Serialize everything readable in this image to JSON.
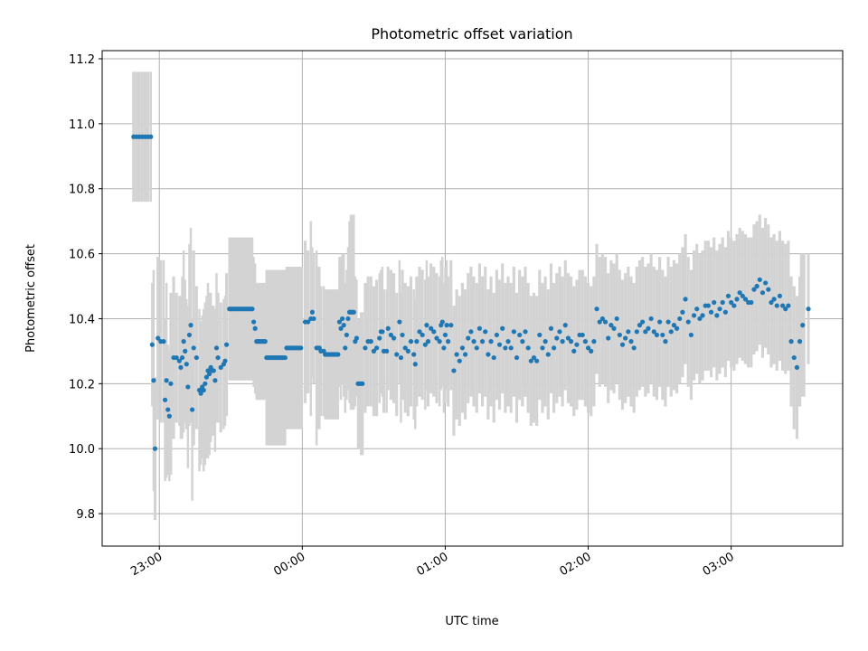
{
  "chart_data": {
    "type": "scatter",
    "title": "Photometric offset variation",
    "xlabel": "UTC time",
    "ylabel": "Photometric offset",
    "x_unit": "hours",
    "xlim": [
      -1.4,
      3.78
    ],
    "ylim": [
      9.7,
      11.225
    ],
    "x_ticks": [
      {
        "value": -1.0,
        "label": "23:00"
      },
      {
        "value": 0.0,
        "label": "00:00"
      },
      {
        "value": 1.0,
        "label": "01:00"
      },
      {
        "value": 2.0,
        "label": "02:00"
      },
      {
        "value": 3.0,
        "label": "03:00"
      }
    ],
    "y_ticks": [
      {
        "value": 9.8,
        "label": "9.8"
      },
      {
        "value": 10.0,
        "label": "10.0"
      },
      {
        "value": 10.2,
        "label": "10.2"
      },
      {
        "value": 10.4,
        "label": "10.4"
      },
      {
        "value": 10.6,
        "label": "10.6"
      },
      {
        "value": 10.8,
        "label": "10.8"
      },
      {
        "value": 11.0,
        "label": "11.0"
      },
      {
        "value": 11.2,
        "label": "11.2"
      }
    ],
    "grid": true,
    "marker_color": "#1f77b4",
    "errorbar_color": "#d3d3d3",
    "points": [
      [
        -1.18,
        10.96,
        0.2
      ],
      [
        -1.16,
        10.96,
        0.2
      ],
      [
        -1.14,
        10.96,
        0.2
      ],
      [
        -1.12,
        10.96,
        0.2
      ],
      [
        -1.1,
        10.96,
        0.2
      ],
      [
        -1.08,
        10.96,
        0.2
      ],
      [
        -1.06,
        10.96,
        0.2
      ],
      [
        -1.05,
        10.32,
        0.19
      ],
      [
        -1.04,
        10.21,
        0.34
      ],
      [
        -1.03,
        10.0,
        0.22
      ],
      [
        -1.01,
        10.34,
        0.25
      ],
      [
        -0.99,
        10.33,
        0.25
      ],
      [
        -0.97,
        10.33,
        0.25
      ],
      [
        -0.96,
        10.15,
        0.25
      ],
      [
        -0.95,
        10.21,
        0.3
      ],
      [
        -0.94,
        10.12,
        0.2
      ],
      [
        -0.93,
        10.1,
        0.2
      ],
      [
        -0.92,
        10.2,
        0.28
      ],
      [
        -0.9,
        10.28,
        0.25
      ],
      [
        -0.88,
        10.28,
        0.2
      ],
      [
        -0.86,
        10.27,
        0.2
      ],
      [
        -0.85,
        10.25,
        0.22
      ],
      [
        -0.84,
        10.28,
        0.25
      ],
      [
        -0.83,
        10.33,
        0.28
      ],
      [
        -0.82,
        10.3,
        0.22
      ],
      [
        -0.81,
        10.26,
        0.2
      ],
      [
        -0.8,
        10.19,
        0.25
      ],
      [
        -0.79,
        10.35,
        0.28
      ],
      [
        -0.78,
        10.38,
        0.3
      ],
      [
        -0.77,
        10.12,
        0.28
      ],
      [
        -0.76,
        10.31,
        0.3
      ],
      [
        -0.74,
        10.28,
        0.22
      ],
      [
        -0.72,
        10.18,
        0.25
      ],
      [
        -0.71,
        10.17,
        0.22
      ],
      [
        -0.7,
        10.19,
        0.22
      ],
      [
        -0.69,
        10.18,
        0.25
      ],
      [
        -0.68,
        10.2,
        0.25
      ],
      [
        -0.67,
        10.22,
        0.25
      ],
      [
        -0.66,
        10.24,
        0.27
      ],
      [
        -0.65,
        10.23,
        0.25
      ],
      [
        -0.64,
        10.25,
        0.23
      ],
      [
        -0.63,
        10.24,
        0.2
      ],
      [
        -0.62,
        10.24,
        0.2
      ],
      [
        -0.61,
        10.21,
        0.22
      ],
      [
        -0.6,
        10.31,
        0.23
      ],
      [
        -0.59,
        10.28,
        0.2
      ],
      [
        -0.57,
        10.25,
        0.2
      ],
      [
        -0.55,
        10.26,
        0.2
      ],
      [
        -0.54,
        10.27,
        0.2
      ],
      [
        -0.53,
        10.32,
        0.22
      ],
      [
        -0.51,
        10.43,
        0.22
      ],
      [
        -0.5,
        10.43,
        0.22
      ],
      [
        -0.49,
        10.43,
        0.22
      ],
      [
        -0.48,
        10.43,
        0.22
      ],
      [
        -0.47,
        10.43,
        0.22
      ],
      [
        -0.46,
        10.43,
        0.22
      ],
      [
        -0.45,
        10.43,
        0.22
      ],
      [
        -0.44,
        10.43,
        0.22
      ],
      [
        -0.43,
        10.43,
        0.22
      ],
      [
        -0.42,
        10.43,
        0.22
      ],
      [
        -0.41,
        10.43,
        0.22
      ],
      [
        -0.4,
        10.43,
        0.22
      ],
      [
        -0.39,
        10.43,
        0.22
      ],
      [
        -0.38,
        10.43,
        0.22
      ],
      [
        -0.37,
        10.43,
        0.22
      ],
      [
        -0.36,
        10.43,
        0.22
      ],
      [
        -0.35,
        10.43,
        0.22
      ],
      [
        -0.34,
        10.39,
        0.2
      ],
      [
        -0.33,
        10.37,
        0.2
      ],
      [
        -0.32,
        10.33,
        0.18
      ],
      [
        -0.31,
        10.33,
        0.18
      ],
      [
        -0.3,
        10.33,
        0.18
      ],
      [
        -0.29,
        10.33,
        0.18
      ],
      [
        -0.28,
        10.33,
        0.18
      ],
      [
        -0.27,
        10.33,
        0.18
      ],
      [
        -0.26,
        10.33,
        0.18
      ],
      [
        -0.25,
        10.28,
        0.27
      ],
      [
        -0.24,
        10.28,
        0.27
      ],
      [
        -0.23,
        10.28,
        0.27
      ],
      [
        -0.22,
        10.28,
        0.27
      ],
      [
        -0.21,
        10.28,
        0.27
      ],
      [
        -0.2,
        10.28,
        0.27
      ],
      [
        -0.19,
        10.28,
        0.27
      ],
      [
        -0.18,
        10.28,
        0.27
      ],
      [
        -0.17,
        10.28,
        0.27
      ],
      [
        -0.16,
        10.28,
        0.27
      ],
      [
        -0.15,
        10.28,
        0.27
      ],
      [
        -0.14,
        10.28,
        0.27
      ],
      [
        -0.13,
        10.28,
        0.27
      ],
      [
        -0.12,
        10.28,
        0.27
      ],
      [
        -0.11,
        10.31,
        0.25
      ],
      [
        -0.1,
        10.31,
        0.25
      ],
      [
        -0.09,
        10.31,
        0.25
      ],
      [
        -0.08,
        10.31,
        0.25
      ],
      [
        -0.07,
        10.31,
        0.25
      ],
      [
        -0.06,
        10.31,
        0.25
      ],
      [
        -0.05,
        10.31,
        0.25
      ],
      [
        -0.04,
        10.31,
        0.25
      ],
      [
        -0.03,
        10.31,
        0.25
      ],
      [
        -0.02,
        10.31,
        0.25
      ],
      [
        -0.01,
        10.31,
        0.25
      ],
      [
        0.02,
        10.39,
        0.25
      ],
      [
        0.04,
        10.39,
        0.22
      ],
      [
        0.06,
        10.4,
        0.3
      ],
      [
        0.07,
        10.42,
        0.2
      ],
      [
        0.08,
        10.4,
        0.2
      ],
      [
        0.1,
        10.31,
        0.3
      ],
      [
        0.11,
        10.31,
        0.25
      ],
      [
        0.12,
        10.31,
        0.25
      ],
      [
        0.13,
        10.3,
        0.2
      ],
      [
        0.15,
        10.3,
        0.2
      ],
      [
        0.16,
        10.29,
        0.2
      ],
      [
        0.17,
        10.29,
        0.2
      ],
      [
        0.18,
        10.29,
        0.2
      ],
      [
        0.19,
        10.29,
        0.2
      ],
      [
        0.2,
        10.29,
        0.2
      ],
      [
        0.21,
        10.29,
        0.2
      ],
      [
        0.22,
        10.29,
        0.2
      ],
      [
        0.23,
        10.29,
        0.2
      ],
      [
        0.24,
        10.29,
        0.2
      ],
      [
        0.25,
        10.29,
        0.2
      ],
      [
        0.26,
        10.39,
        0.2
      ],
      [
        0.27,
        10.37,
        0.22
      ],
      [
        0.28,
        10.4,
        0.2
      ],
      [
        0.29,
        10.38,
        0.22
      ],
      [
        0.3,
        10.31,
        0.2
      ],
      [
        0.31,
        10.35,
        0.2
      ],
      [
        0.32,
        10.4,
        0.22
      ],
      [
        0.33,
        10.42,
        0.28
      ],
      [
        0.34,
        10.42,
        0.3
      ],
      [
        0.35,
        10.42,
        0.3
      ],
      [
        0.36,
        10.42,
        0.3
      ],
      [
        0.37,
        10.33,
        0.2
      ],
      [
        0.38,
        10.34,
        0.18
      ],
      [
        0.39,
        10.2,
        0.2
      ],
      [
        0.4,
        10.2,
        0.2
      ],
      [
        0.41,
        10.2,
        0.22
      ],
      [
        0.42,
        10.2,
        0.22
      ],
      [
        0.44,
        10.31,
        0.2
      ],
      [
        0.46,
        10.33,
        0.2
      ],
      [
        0.48,
        10.33,
        0.2
      ],
      [
        0.5,
        10.3,
        0.2
      ],
      [
        0.52,
        10.31,
        0.21
      ],
      [
        0.54,
        10.34,
        0.2
      ],
      [
        0.55,
        10.36,
        0.19
      ],
      [
        0.56,
        10.36,
        0.2
      ],
      [
        0.57,
        10.3,
        0.19
      ],
      [
        0.59,
        10.3,
        0.19
      ],
      [
        0.6,
        10.37,
        0.19
      ],
      [
        0.62,
        10.35,
        0.2
      ],
      [
        0.64,
        10.34,
        0.2
      ],
      [
        0.66,
        10.29,
        0.19
      ],
      [
        0.68,
        10.39,
        0.19
      ],
      [
        0.69,
        10.28,
        0.2
      ],
      [
        0.7,
        10.35,
        0.2
      ],
      [
        0.72,
        10.31,
        0.2
      ],
      [
        0.74,
        10.3,
        0.2
      ],
      [
        0.76,
        10.33,
        0.2
      ],
      [
        0.78,
        10.29,
        0.2
      ],
      [
        0.79,
        10.26,
        0.2
      ],
      [
        0.8,
        10.33,
        0.2
      ],
      [
        0.82,
        10.36,
        0.2
      ],
      [
        0.84,
        10.35,
        0.2
      ],
      [
        0.86,
        10.32,
        0.2
      ],
      [
        0.87,
        10.38,
        0.2
      ],
      [
        0.88,
        10.33,
        0.2
      ],
      [
        0.9,
        10.37,
        0.2
      ],
      [
        0.92,
        10.36,
        0.2
      ],
      [
        0.94,
        10.34,
        0.2
      ],
      [
        0.96,
        10.33,
        0.2
      ],
      [
        0.97,
        10.38,
        0.2
      ],
      [
        0.98,
        10.39,
        0.2
      ],
      [
        0.99,
        10.31,
        0.2
      ],
      [
        1.0,
        10.35,
        0.21
      ],
      [
        1.01,
        10.38,
        0.2
      ],
      [
        1.02,
        10.33,
        0.2
      ],
      [
        1.04,
        10.38,
        0.2
      ],
      [
        1.06,
        10.24,
        0.2
      ],
      [
        1.08,
        10.29,
        0.2
      ],
      [
        1.1,
        10.27,
        0.2
      ],
      [
        1.12,
        10.31,
        0.2
      ],
      [
        1.14,
        10.29,
        0.2
      ],
      [
        1.16,
        10.34,
        0.2
      ],
      [
        1.18,
        10.36,
        0.2
      ],
      [
        1.2,
        10.33,
        0.2
      ],
      [
        1.22,
        10.31,
        0.2
      ],
      [
        1.24,
        10.37,
        0.2
      ],
      [
        1.26,
        10.33,
        0.2
      ],
      [
        1.28,
        10.36,
        0.2
      ],
      [
        1.3,
        10.29,
        0.2
      ],
      [
        1.32,
        10.33,
        0.2
      ],
      [
        1.34,
        10.28,
        0.2
      ],
      [
        1.36,
        10.35,
        0.2
      ],
      [
        1.38,
        10.32,
        0.2
      ],
      [
        1.4,
        10.37,
        0.2
      ],
      [
        1.42,
        10.31,
        0.2
      ],
      [
        1.44,
        10.33,
        0.2
      ],
      [
        1.46,
        10.31,
        0.2
      ],
      [
        1.48,
        10.36,
        0.2
      ],
      [
        1.5,
        10.28,
        0.2
      ],
      [
        1.52,
        10.35,
        0.2
      ],
      [
        1.54,
        10.33,
        0.2
      ],
      [
        1.56,
        10.36,
        0.2
      ],
      [
        1.58,
        10.31,
        0.2
      ],
      [
        1.6,
        10.27,
        0.2
      ],
      [
        1.62,
        10.28,
        0.2
      ],
      [
        1.64,
        10.27,
        0.2
      ],
      [
        1.66,
        10.35,
        0.2
      ],
      [
        1.68,
        10.31,
        0.2
      ],
      [
        1.7,
        10.33,
        0.2
      ],
      [
        1.72,
        10.29,
        0.2
      ],
      [
        1.74,
        10.37,
        0.2
      ],
      [
        1.76,
        10.31,
        0.2
      ],
      [
        1.78,
        10.34,
        0.2
      ],
      [
        1.8,
        10.36,
        0.2
      ],
      [
        1.82,
        10.33,
        0.2
      ],
      [
        1.84,
        10.38,
        0.2
      ],
      [
        1.86,
        10.34,
        0.2
      ],
      [
        1.88,
        10.33,
        0.2
      ],
      [
        1.9,
        10.3,
        0.2
      ],
      [
        1.92,
        10.32,
        0.2
      ],
      [
        1.94,
        10.35,
        0.2
      ],
      [
        1.96,
        10.35,
        0.2
      ],
      [
        1.98,
        10.33,
        0.2
      ],
      [
        2.0,
        10.31,
        0.2
      ],
      [
        2.02,
        10.3,
        0.2
      ],
      [
        2.04,
        10.33,
        0.2
      ],
      [
        2.06,
        10.43,
        0.2
      ],
      [
        2.08,
        10.39,
        0.2
      ],
      [
        2.1,
        10.4,
        0.2
      ],
      [
        2.12,
        10.39,
        0.2
      ],
      [
        2.14,
        10.34,
        0.2
      ],
      [
        2.16,
        10.38,
        0.2
      ],
      [
        2.18,
        10.37,
        0.2
      ],
      [
        2.2,
        10.4,
        0.2
      ],
      [
        2.22,
        10.35,
        0.2
      ],
      [
        2.24,
        10.32,
        0.2
      ],
      [
        2.26,
        10.34,
        0.2
      ],
      [
        2.28,
        10.36,
        0.2
      ],
      [
        2.3,
        10.33,
        0.2
      ],
      [
        2.32,
        10.31,
        0.2
      ],
      [
        2.34,
        10.36,
        0.2
      ],
      [
        2.36,
        10.38,
        0.2
      ],
      [
        2.38,
        10.39,
        0.2
      ],
      [
        2.4,
        10.36,
        0.2
      ],
      [
        2.42,
        10.37,
        0.2
      ],
      [
        2.44,
        10.4,
        0.2
      ],
      [
        2.46,
        10.36,
        0.2
      ],
      [
        2.48,
        10.35,
        0.2
      ],
      [
        2.5,
        10.39,
        0.2
      ],
      [
        2.52,
        10.35,
        0.2
      ],
      [
        2.54,
        10.33,
        0.2
      ],
      [
        2.56,
        10.39,
        0.2
      ],
      [
        2.58,
        10.36,
        0.2
      ],
      [
        2.6,
        10.38,
        0.2
      ],
      [
        2.62,
        10.37,
        0.2
      ],
      [
        2.64,
        10.4,
        0.2
      ],
      [
        2.66,
        10.42,
        0.2
      ],
      [
        2.68,
        10.46,
        0.2
      ],
      [
        2.7,
        10.39,
        0.2
      ],
      [
        2.72,
        10.35,
        0.2
      ],
      [
        2.74,
        10.41,
        0.2
      ],
      [
        2.76,
        10.43,
        0.2
      ],
      [
        2.78,
        10.4,
        0.2
      ],
      [
        2.8,
        10.41,
        0.2
      ],
      [
        2.82,
        10.44,
        0.2
      ],
      [
        2.84,
        10.44,
        0.2
      ],
      [
        2.86,
        10.42,
        0.2
      ],
      [
        2.88,
        10.45,
        0.2
      ],
      [
        2.9,
        10.41,
        0.2
      ],
      [
        2.92,
        10.43,
        0.2
      ],
      [
        2.94,
        10.45,
        0.2
      ],
      [
        2.96,
        10.42,
        0.2
      ],
      [
        2.98,
        10.47,
        0.2
      ],
      [
        3.0,
        10.45,
        0.2
      ],
      [
        3.02,
        10.44,
        0.2
      ],
      [
        3.04,
        10.46,
        0.2
      ],
      [
        3.06,
        10.48,
        0.2
      ],
      [
        3.08,
        10.47,
        0.2
      ],
      [
        3.1,
        10.46,
        0.2
      ],
      [
        3.12,
        10.45,
        0.2
      ],
      [
        3.14,
        10.45,
        0.2
      ],
      [
        3.16,
        10.49,
        0.2
      ],
      [
        3.18,
        10.5,
        0.2
      ],
      [
        3.2,
        10.52,
        0.2
      ],
      [
        3.22,
        10.48,
        0.2
      ],
      [
        3.24,
        10.51,
        0.2
      ],
      [
        3.26,
        10.49,
        0.2
      ],
      [
        3.28,
        10.45,
        0.2
      ],
      [
        3.3,
        10.46,
        0.2
      ],
      [
        3.32,
        10.44,
        0.2
      ],
      [
        3.34,
        10.47,
        0.2
      ],
      [
        3.36,
        10.44,
        0.2
      ],
      [
        3.38,
        10.43,
        0.2
      ],
      [
        3.4,
        10.44,
        0.2
      ],
      [
        3.42,
        10.33,
        0.2
      ],
      [
        3.44,
        10.28,
        0.22
      ],
      [
        3.46,
        10.25,
        0.22
      ],
      [
        3.48,
        10.33,
        0.2
      ],
      [
        3.5,
        10.38,
        0.22
      ],
      [
        3.54,
        10.43,
        0.17
      ]
    ]
  }
}
